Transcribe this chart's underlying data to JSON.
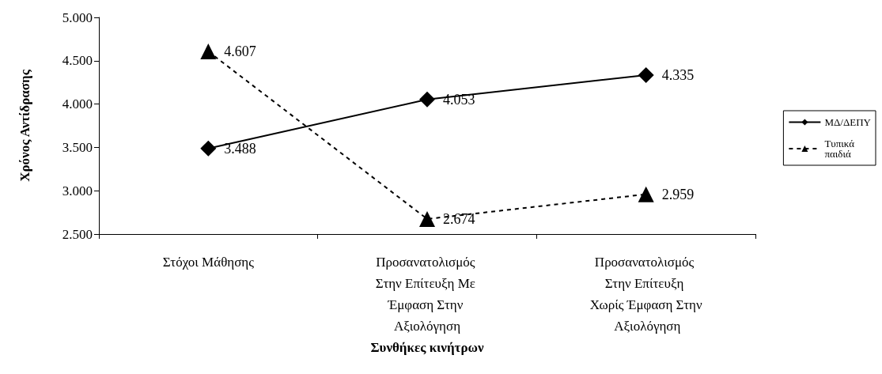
{
  "chart_data": {
    "type": "line",
    "xlabel": "Συνθήκες κινήτρων",
    "ylabel": "Χρόνος Αντίδρασης",
    "categories": [
      "Στόχοι Μάθησης",
      "Προσανατολισμός Στην Επίτευξη Με Έμφαση Στην Αξιολόγηση",
      "Προσανατολισμός Στην Επίτευξη Χωρίς Έμφαση Στην Αξιολόγηση"
    ],
    "series": [
      {
        "name": "ΜΔ/ΔΕΠΥ",
        "color": "#000000",
        "values": [
          3.488,
          4.053,
          4.335
        ],
        "marker": "diamond",
        "line_style": "solid"
      },
      {
        "name": "Τυπικά παιδιά",
        "color": "#000000",
        "values": [
          4.607,
          2.674,
          2.959
        ],
        "marker": "triangle",
        "line_style": "dashed"
      }
    ],
    "ylim": [
      2.5,
      5
    ],
    "yticks": [
      {
        "value": 2.5,
        "label": "2.500"
      },
      {
        "value": 3,
        "label": "3.000"
      },
      {
        "value": 3.5,
        "label": "3.500"
      },
      {
        "value": 4,
        "label": "4.000"
      },
      {
        "value": 4.5,
        "label": "4.500"
      },
      {
        "value": 5,
        "label": "5.000"
      }
    ],
    "data_labels": true,
    "grid": false,
    "legend": "right"
  }
}
